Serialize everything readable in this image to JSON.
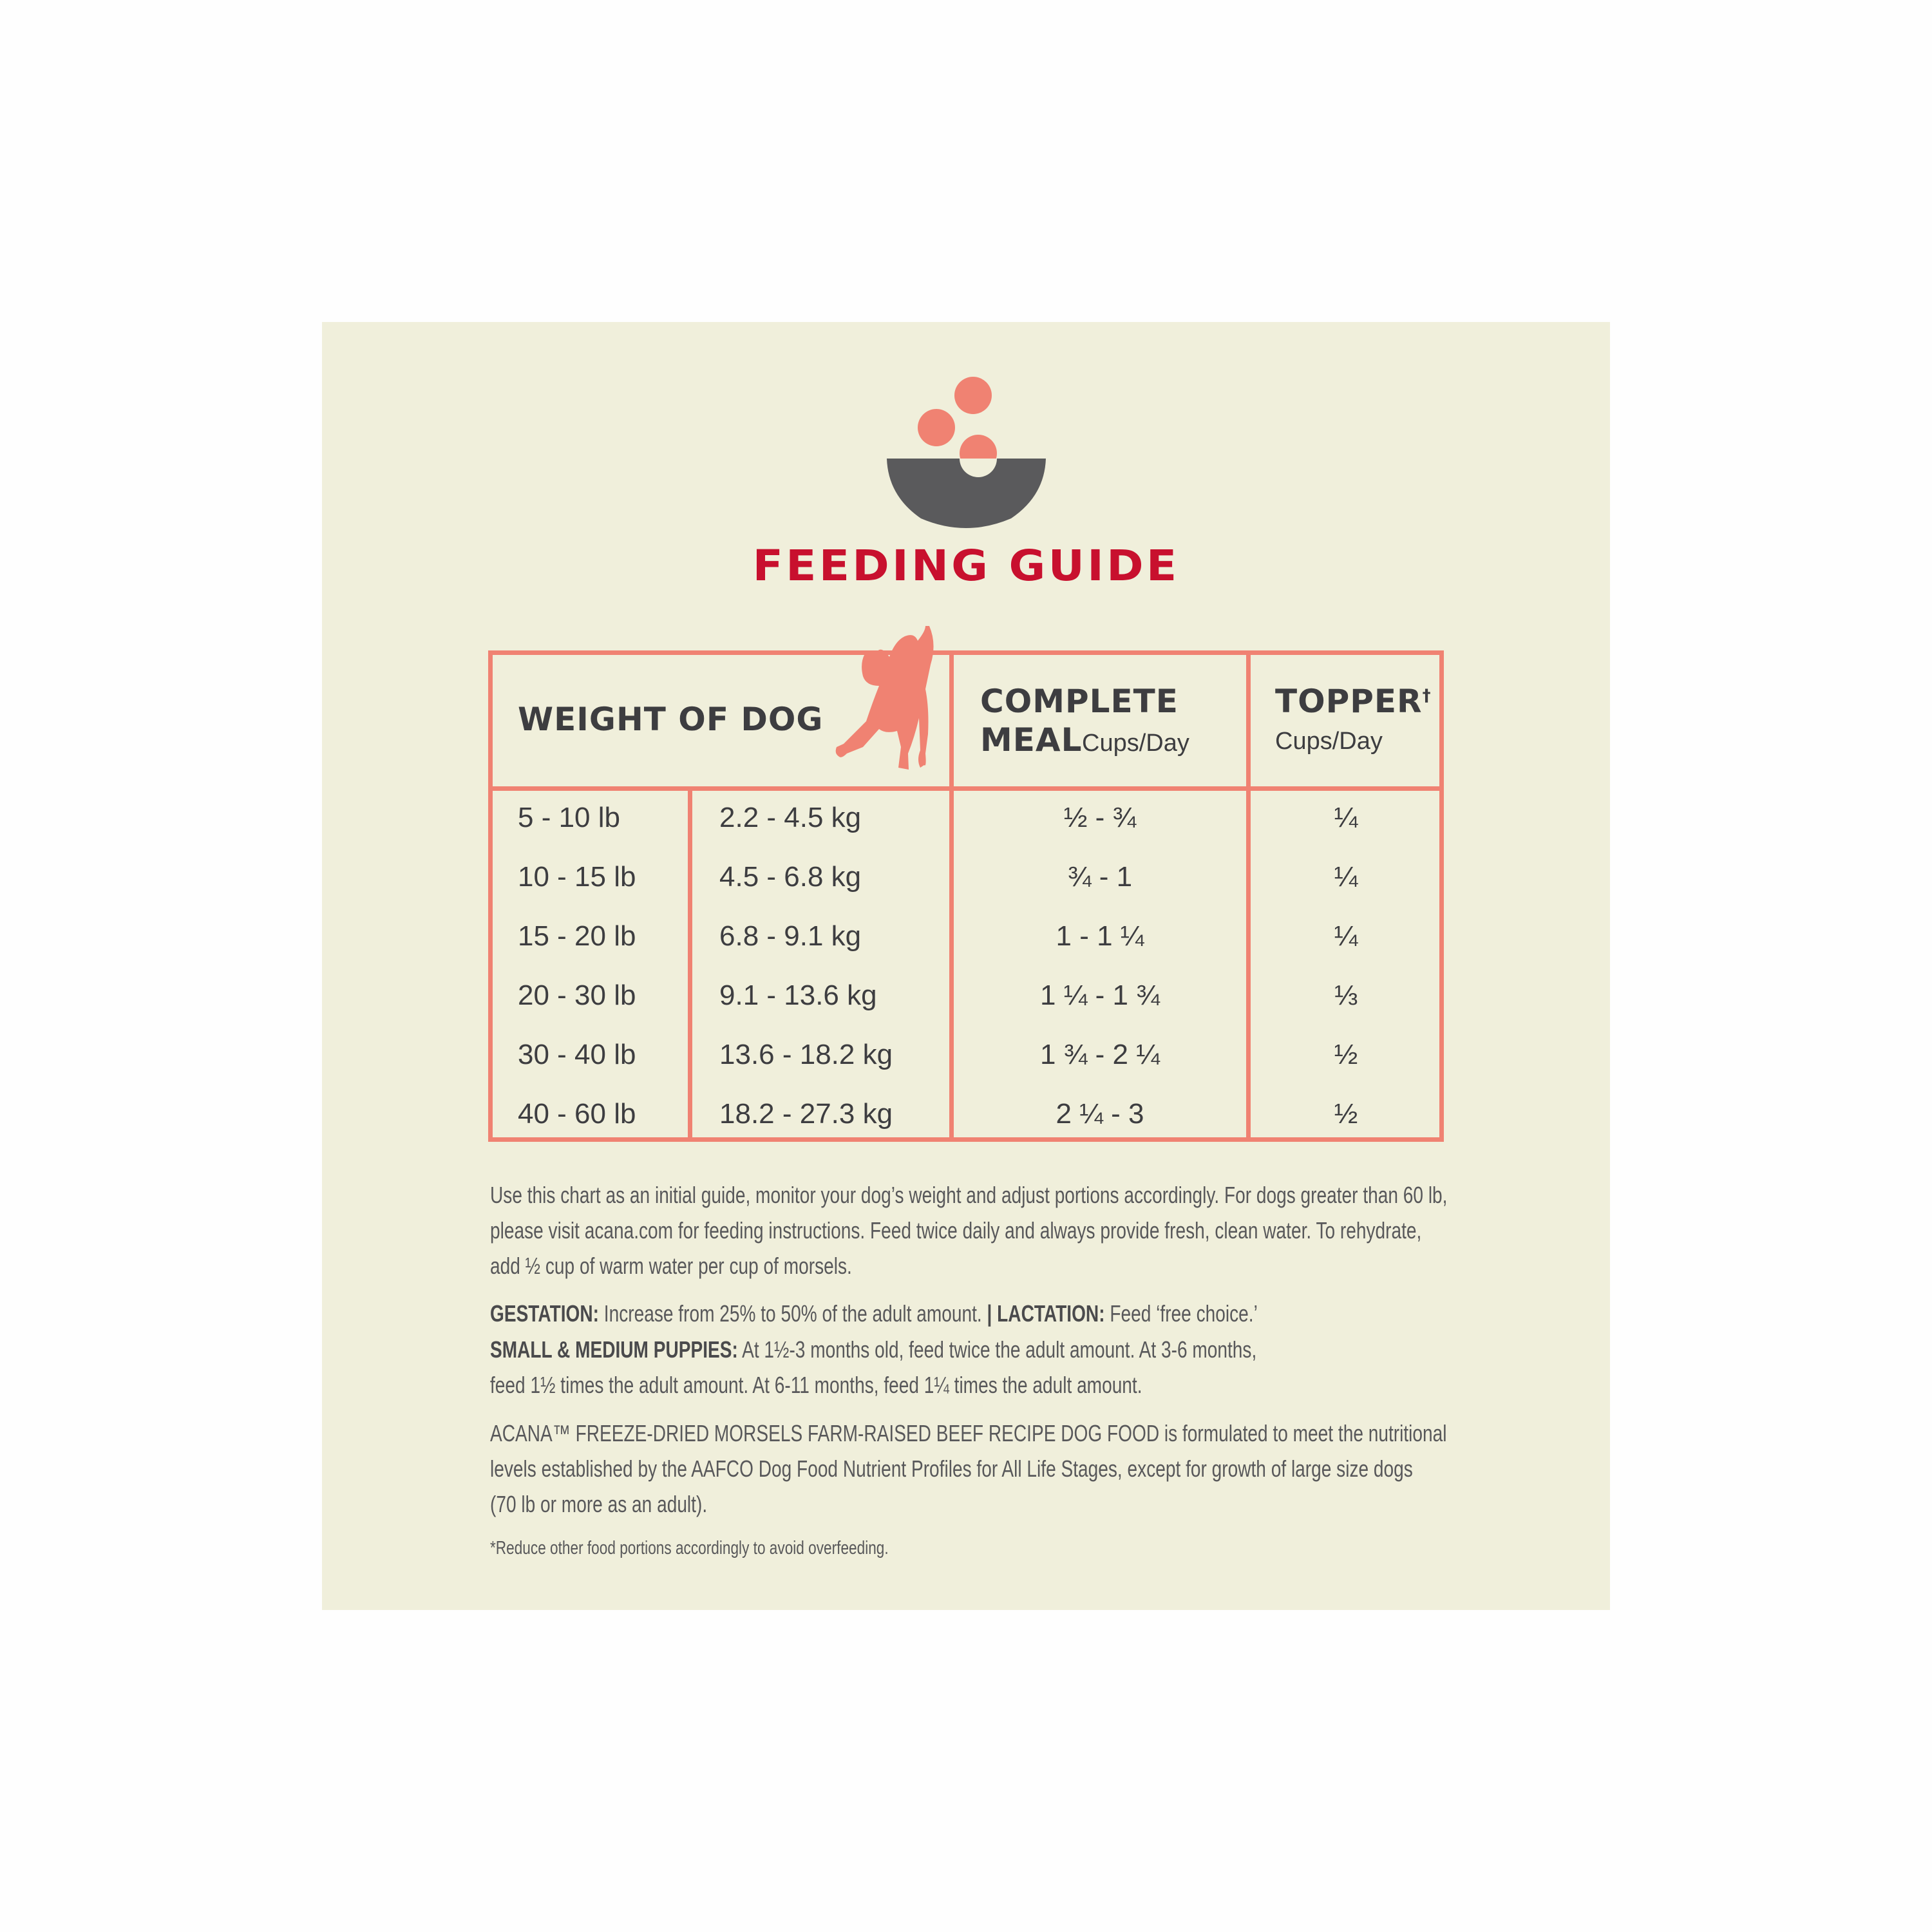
{
  "title": "FEEDING GUIDE",
  "colors": {
    "background": "#f0efdb",
    "accent": "#f08272",
    "title": "#c8102e",
    "bowl": "#5a5a5c",
    "text": "#454547"
  },
  "icons": {
    "bowl": "food-bowl-icon",
    "dog": "dog-silhouette-icon"
  },
  "table": {
    "headers": {
      "weight": "WEIGHT OF DOG",
      "meal_line1": "COMPLETE",
      "meal_line2": "MEAL",
      "meal_unit": "Cups/Day",
      "topper": "TOPPER",
      "topper_mark": "†",
      "topper_unit": "Cups/Day"
    },
    "rows": [
      {
        "lb": "5 - 10 lb",
        "kg": "2.2 - 4.5 kg",
        "meal": "½ - ¾",
        "topper": "¼"
      },
      {
        "lb": "10 - 15 lb",
        "kg": "4.5 - 6.8 kg",
        "meal": "¾ -  1",
        "topper": "¼"
      },
      {
        "lb": "15 - 20 lb",
        "kg": "6.8 - 9.1 kg",
        "meal": "1 - 1 ¼",
        "topper": "¼"
      },
      {
        "lb": "20 - 30 lb",
        "kg": "9.1 - 13.6 kg",
        "meal": "1 ¼ - 1 ¾",
        "topper": "⅓"
      },
      {
        "lb": "30 - 40 lb",
        "kg": "13.6 - 18.2 kg",
        "meal": "1 ¾ - 2 ¼",
        "topper": "½"
      },
      {
        "lb": "40 - 60 lb",
        "kg": "18.2 - 27.3 kg",
        "meal": "2 ¼ - 3",
        "topper": "½"
      }
    ]
  },
  "notes": {
    "p1": [
      "Use this chart as an initial guide, monitor your dog’s weight and adjust portions accordingly. For dogs greater than 60 lb,",
      "please visit acana.com for feeding instructions. Feed twice daily and always provide fresh, clean water. To rehydrate,",
      "add ½ cup of warm water per cup of morsels."
    ],
    "gestation_label": "GESTATION:",
    "gestation_text": " Increase from 25% to 50% of the adult amount. ",
    "separator": "|",
    "lactation_label": " LACTATION:",
    "lactation_text": " Feed ‘free choice.’",
    "puppies_label": "SMALL & MEDIUM PUPPIES:",
    "puppies_text": " At 1½-3 months old, feed twice the adult amount. At 3-6 months,",
    "puppies_line2": "feed 1½ times the adult amount. At 6-11 months, feed 1¼ times the adult amount.",
    "p3": [
      "ACANA™ FREEZE-DRIED MORSELS FARM-RAISED BEEF RECIPE DOG FOOD is formulated to meet the nutritional",
      "levels established by the AAFCO Dog Food Nutrient Profiles for All Life Stages, except for growth of large size dogs",
      "(70 lb or more as an adult)."
    ],
    "footnote": "*Reduce other food portions accordingly to avoid overfeeding."
  }
}
